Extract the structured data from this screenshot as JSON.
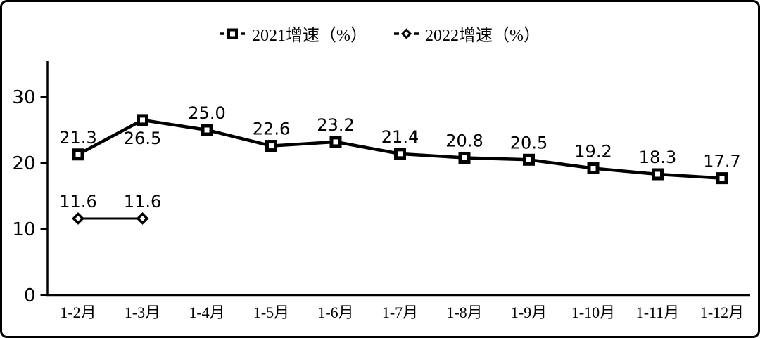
{
  "chart_data": {
    "type": "line",
    "title": "",
    "xlabel": "",
    "ylabel": "",
    "categories": [
      "1-2月",
      "1-3月",
      "1-4月",
      "1-5月",
      "1-6月",
      "1-7月",
      "1-8月",
      "1-9月",
      "1-10月",
      "1-11月",
      "1-12月"
    ],
    "series": [
      {
        "name": "2021增速（%）",
        "marker": "square",
        "values": [
          21.3,
          26.5,
          25.0,
          22.6,
          23.2,
          21.4,
          20.8,
          20.5,
          19.2,
          18.3,
          17.7
        ],
        "label_below_indices": [
          1
        ]
      },
      {
        "name": "2022增速（%）",
        "marker": "diamond",
        "values": [
          11.6,
          11.6
        ],
        "label_below_indices": []
      }
    ],
    "yticks": [
      0,
      10,
      20,
      30
    ],
    "ylim": [
      0,
      35.5
    ],
    "grid": false,
    "legend_position": "top-center",
    "colors": {
      "line": "#000000",
      "marker_fill": "#ffffff",
      "background": "#ffffff",
      "frame_border": "#000000"
    }
  }
}
